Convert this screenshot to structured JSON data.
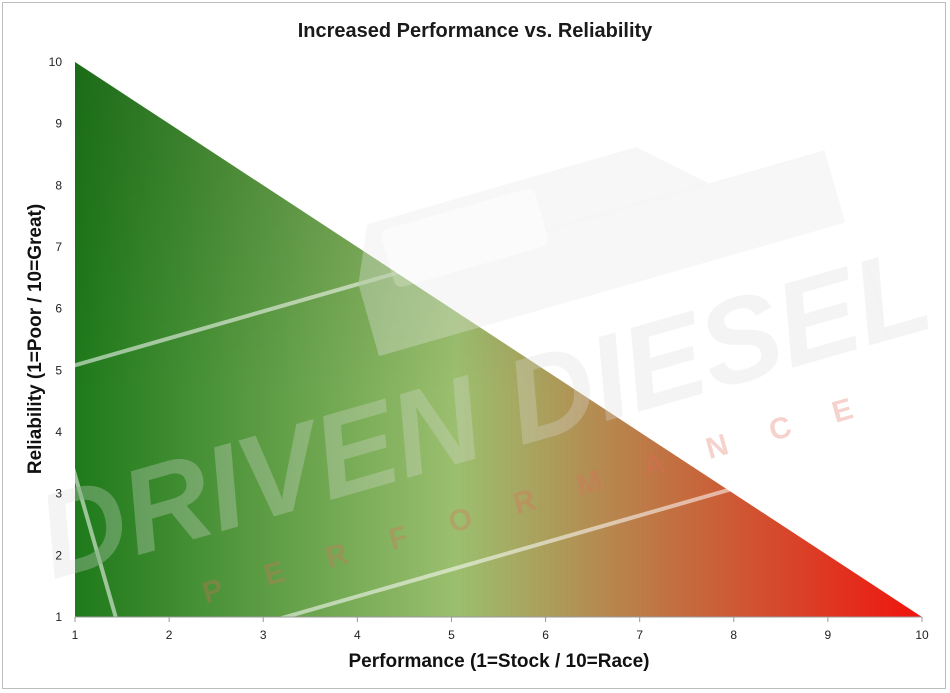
{
  "chart_data": {
    "type": "area",
    "title": "Increased Performance vs. Reliability",
    "xlabel": "Performance (1=Stock / 10=Race)",
    "ylabel": "Reliability (1=Poor / 10=Great)",
    "xlim": [
      1,
      10
    ],
    "ylim": [
      1,
      10
    ],
    "xticks": [
      "1",
      "2",
      "3",
      "4",
      "5",
      "6",
      "7",
      "8",
      "9",
      "10"
    ],
    "yticks": [
      "1",
      "2",
      "3",
      "4",
      "5",
      "6",
      "7",
      "8",
      "9",
      "10"
    ],
    "grid": false,
    "legend": "none",
    "series": [
      {
        "x": [
          1,
          10
        ],
        "values": [
          10,
          1
        ]
      }
    ],
    "gradient_colors": [
      "#1e7a1a",
      "#9bbf6e",
      "#f0140e"
    ]
  },
  "watermark": {
    "brand": "DRIVEN DIESEL",
    "tagline": "PERFORMANCE"
  }
}
